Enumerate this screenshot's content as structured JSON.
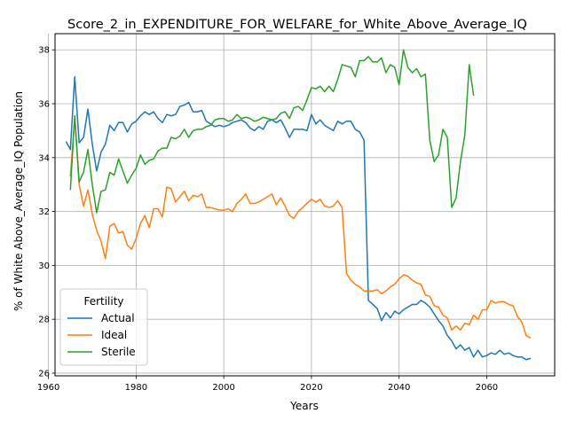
{
  "chart_data": {
    "type": "line",
    "title": "Score_2_in_EXPENDITURE_FOR_WELFARE_for_White_Above_Average_IQ",
    "xlabel": "Years",
    "ylabel": "% of White Above_Average_IQ Population",
    "xlim": [
      1961.5,
      2075.5
    ],
    "ylim": [
      25.9,
      38.6
    ],
    "xticks": [
      1960,
      1980,
      2000,
      2020,
      2040,
      2060
    ],
    "yticks": [
      26,
      28,
      30,
      32,
      34,
      36,
      38
    ],
    "grid": true,
    "legend": {
      "title": "Fertility",
      "position": "lower-left"
    },
    "series": [
      {
        "name": "Actual",
        "color": "#1f77b4",
        "points": [
          [
            1964,
            34.6
          ],
          [
            1965,
            34.3
          ],
          [
            1966,
            37.0
          ],
          [
            1967,
            34.55
          ],
          [
            1968,
            34.75
          ],
          [
            1969,
            35.8
          ],
          [
            1970,
            34.5
          ],
          [
            1971,
            33.5
          ],
          [
            1972,
            34.2
          ],
          [
            1973,
            34.5
          ],
          [
            1974,
            35.2
          ],
          [
            1975,
            35.0
          ],
          [
            1976,
            35.3
          ],
          [
            1977,
            35.3
          ],
          [
            1978,
            34.95
          ],
          [
            1979,
            35.25
          ],
          [
            1980,
            35.35
          ],
          [
            1981,
            35.55
          ],
          [
            1982,
            35.7
          ],
          [
            1983,
            35.6
          ],
          [
            1984,
            35.7
          ],
          [
            1985,
            35.45
          ],
          [
            1986,
            35.3
          ],
          [
            1987,
            35.6
          ],
          [
            1988,
            35.55
          ],
          [
            1989,
            35.6
          ],
          [
            1990,
            35.9
          ],
          [
            1991,
            35.95
          ],
          [
            1992,
            36.05
          ],
          [
            1993,
            35.7
          ],
          [
            1994,
            35.7
          ],
          [
            1995,
            35.75
          ],
          [
            1996,
            35.35
          ],
          [
            1997,
            35.25
          ],
          [
            1998,
            35.15
          ],
          [
            1999,
            35.2
          ],
          [
            2000,
            35.15
          ],
          [
            2001,
            35.2
          ],
          [
            2002,
            35.3
          ],
          [
            2003,
            35.35
          ],
          [
            2004,
            35.4
          ],
          [
            2005,
            35.3
          ],
          [
            2006,
            35.1
          ],
          [
            2007,
            35.0
          ],
          [
            2008,
            35.15
          ],
          [
            2009,
            35.05
          ],
          [
            2010,
            35.35
          ],
          [
            2011,
            35.4
          ],
          [
            2012,
            35.3
          ],
          [
            2013,
            35.4
          ],
          [
            2014,
            35.1
          ],
          [
            2015,
            34.75
          ],
          [
            2016,
            35.05
          ],
          [
            2017,
            35.05
          ],
          [
            2018,
            35.05
          ],
          [
            2019,
            35.0
          ],
          [
            2020,
            35.6
          ],
          [
            2021,
            35.25
          ],
          [
            2022,
            35.4
          ],
          [
            2023,
            35.2
          ],
          [
            2024,
            35.1
          ],
          [
            2025,
            35.0
          ],
          [
            2026,
            35.35
          ],
          [
            2027,
            35.25
          ],
          [
            2028,
            35.35
          ],
          [
            2029,
            35.35
          ],
          [
            2030,
            35.05
          ],
          [
            2031,
            34.95
          ],
          [
            2032,
            34.65
          ],
          [
            2033,
            28.7
          ],
          [
            2034,
            28.55
          ],
          [
            2035,
            28.4
          ],
          [
            2036,
            27.95
          ],
          [
            2037,
            28.25
          ],
          [
            2038,
            28.05
          ],
          [
            2039,
            28.3
          ],
          [
            2040,
            28.2
          ],
          [
            2041,
            28.35
          ],
          [
            2042,
            28.45
          ],
          [
            2043,
            28.55
          ],
          [
            2044,
            28.55
          ],
          [
            2045,
            28.7
          ],
          [
            2046,
            28.6
          ],
          [
            2047,
            28.45
          ],
          [
            2048,
            28.2
          ],
          [
            2049,
            27.95
          ],
          [
            2050,
            27.75
          ],
          [
            2051,
            27.4
          ],
          [
            2052,
            27.2
          ],
          [
            2053,
            26.9
          ],
          [
            2054,
            27.05
          ],
          [
            2055,
            26.85
          ],
          [
            2056,
            26.95
          ],
          [
            2057,
            26.6
          ],
          [
            2058,
            26.85
          ],
          [
            2059,
            26.6
          ],
          [
            2060,
            26.65
          ],
          [
            2061,
            26.75
          ],
          [
            2062,
            26.7
          ],
          [
            2063,
            26.85
          ],
          [
            2064,
            26.7
          ],
          [
            2065,
            26.75
          ],
          [
            2066,
            26.65
          ],
          [
            2067,
            26.6
          ],
          [
            2068,
            26.6
          ],
          [
            2069,
            26.5
          ],
          [
            2070,
            26.55
          ]
        ]
      },
      {
        "name": "Ideal",
        "color": "#ff7f0e",
        "points": [
          [
            1965,
            33.3
          ],
          [
            1966,
            35.5
          ],
          [
            1967,
            33.0
          ],
          [
            1968,
            32.2
          ],
          [
            1969,
            32.8
          ],
          [
            1970,
            31.9
          ],
          [
            1971,
            31.3
          ],
          [
            1972,
            30.9
          ],
          [
            1973,
            30.25
          ],
          [
            1974,
            31.45
          ],
          [
            1975,
            31.55
          ],
          [
            1976,
            31.2
          ],
          [
            1977,
            31.25
          ],
          [
            1978,
            30.75
          ],
          [
            1979,
            30.6
          ],
          [
            1980,
            31.0
          ],
          [
            1981,
            31.55
          ],
          [
            1982,
            31.85
          ],
          [
            1983,
            31.4
          ],
          [
            1984,
            32.1
          ],
          [
            1985,
            32.1
          ],
          [
            1986,
            31.8
          ],
          [
            1987,
            32.9
          ],
          [
            1988,
            32.85
          ],
          [
            1989,
            32.35
          ],
          [
            1990,
            32.55
          ],
          [
            1991,
            32.75
          ],
          [
            1992,
            32.4
          ],
          [
            1993,
            32.6
          ],
          [
            1994,
            32.55
          ],
          [
            1995,
            32.65
          ],
          [
            1996,
            32.15
          ],
          [
            1997,
            32.15
          ],
          [
            1998,
            32.1
          ],
          [
            1999,
            32.05
          ],
          [
            2000,
            32.05
          ],
          [
            2001,
            32.1
          ],
          [
            2002,
            32.0
          ],
          [
            2003,
            32.3
          ],
          [
            2004,
            32.45
          ],
          [
            2005,
            32.65
          ],
          [
            2006,
            32.3
          ],
          [
            2007,
            32.3
          ],
          [
            2008,
            32.35
          ],
          [
            2009,
            32.45
          ],
          [
            2010,
            32.55
          ],
          [
            2011,
            32.65
          ],
          [
            2012,
            32.25
          ],
          [
            2013,
            32.5
          ],
          [
            2014,
            32.2
          ],
          [
            2015,
            31.85
          ],
          [
            2016,
            31.75
          ],
          [
            2017,
            32.0
          ],
          [
            2018,
            32.15
          ],
          [
            2019,
            32.3
          ],
          [
            2020,
            32.45
          ],
          [
            2021,
            32.35
          ],
          [
            2022,
            32.45
          ],
          [
            2023,
            32.2
          ],
          [
            2024,
            32.15
          ],
          [
            2025,
            32.2
          ],
          [
            2026,
            32.4
          ],
          [
            2027,
            32.15
          ],
          [
            2028,
            29.7
          ],
          [
            2029,
            29.45
          ],
          [
            2030,
            29.3
          ],
          [
            2031,
            29.2
          ],
          [
            2032,
            29.05
          ],
          [
            2033,
            29.05
          ],
          [
            2034,
            29.05
          ],
          [
            2035,
            29.1
          ],
          [
            2036,
            28.95
          ],
          [
            2037,
            29.05
          ],
          [
            2038,
            29.2
          ],
          [
            2039,
            29.3
          ],
          [
            2040,
            29.5
          ],
          [
            2041,
            29.65
          ],
          [
            2042,
            29.6
          ],
          [
            2043,
            29.45
          ],
          [
            2044,
            29.35
          ],
          [
            2045,
            29.3
          ],
          [
            2046,
            28.9
          ],
          [
            2047,
            28.85
          ],
          [
            2048,
            28.5
          ],
          [
            2049,
            28.45
          ],
          [
            2050,
            28.15
          ],
          [
            2051,
            28.05
          ],
          [
            2052,
            27.6
          ],
          [
            2053,
            27.75
          ],
          [
            2054,
            27.6
          ],
          [
            2055,
            27.85
          ],
          [
            2056,
            27.8
          ],
          [
            2057,
            28.15
          ],
          [
            2058,
            28.0
          ],
          [
            2059,
            28.35
          ],
          [
            2060,
            28.35
          ],
          [
            2061,
            28.7
          ],
          [
            2062,
            28.6
          ],
          [
            2063,
            28.65
          ],
          [
            2064,
            28.65
          ],
          [
            2065,
            28.55
          ],
          [
            2066,
            28.5
          ],
          [
            2067,
            28.1
          ],
          [
            2068,
            27.9
          ],
          [
            2069,
            27.4
          ],
          [
            2070,
            27.3
          ]
        ]
      },
      {
        "name": "Sterile",
        "color": "#2ca02c",
        "points": [
          [
            1965,
            32.8
          ],
          [
            1966,
            35.55
          ],
          [
            1967,
            33.1
          ],
          [
            1968,
            33.45
          ],
          [
            1969,
            34.3
          ],
          [
            1970,
            33.0
          ],
          [
            1971,
            31.95
          ],
          [
            1972,
            32.75
          ],
          [
            1973,
            32.8
          ],
          [
            1974,
            33.45
          ],
          [
            1975,
            33.35
          ],
          [
            1976,
            33.95
          ],
          [
            1977,
            33.5
          ],
          [
            1978,
            33.05
          ],
          [
            1979,
            33.35
          ],
          [
            1980,
            33.6
          ],
          [
            1981,
            34.1
          ],
          [
            1982,
            33.75
          ],
          [
            1983,
            33.9
          ],
          [
            1984,
            33.95
          ],
          [
            1985,
            34.25
          ],
          [
            1986,
            34.35
          ],
          [
            1987,
            34.35
          ],
          [
            1988,
            34.75
          ],
          [
            1989,
            34.7
          ],
          [
            1990,
            34.8
          ],
          [
            1991,
            35.05
          ],
          [
            1992,
            34.75
          ],
          [
            1993,
            35.0
          ],
          [
            1994,
            35.05
          ],
          [
            1995,
            35.05
          ],
          [
            1996,
            35.15
          ],
          [
            1997,
            35.2
          ],
          [
            1998,
            35.4
          ],
          [
            1999,
            35.45
          ],
          [
            2000,
            35.45
          ],
          [
            2001,
            35.35
          ],
          [
            2002,
            35.4
          ],
          [
            2003,
            35.6
          ],
          [
            2004,
            35.45
          ],
          [
            2005,
            35.5
          ],
          [
            2006,
            35.45
          ],
          [
            2007,
            35.35
          ],
          [
            2008,
            35.4
          ],
          [
            2009,
            35.5
          ],
          [
            2010,
            35.45
          ],
          [
            2011,
            35.4
          ],
          [
            2012,
            35.45
          ],
          [
            2013,
            35.65
          ],
          [
            2014,
            35.7
          ],
          [
            2015,
            35.45
          ],
          [
            2016,
            35.85
          ],
          [
            2017,
            35.9
          ],
          [
            2018,
            35.75
          ],
          [
            2019,
            36.15
          ],
          [
            2020,
            36.6
          ],
          [
            2021,
            36.55
          ],
          [
            2022,
            36.65
          ],
          [
            2023,
            36.45
          ],
          [
            2024,
            36.65
          ],
          [
            2025,
            36.45
          ],
          [
            2026,
            36.9
          ],
          [
            2027,
            37.45
          ],
          [
            2028,
            37.4
          ],
          [
            2029,
            37.35
          ],
          [
            2030,
            37.0
          ],
          [
            2031,
            37.6
          ],
          [
            2032,
            37.6
          ],
          [
            2033,
            37.75
          ],
          [
            2034,
            37.55
          ],
          [
            2035,
            37.55
          ],
          [
            2036,
            37.7
          ],
          [
            2037,
            37.15
          ],
          [
            2038,
            37.45
          ],
          [
            2039,
            37.35
          ],
          [
            2040,
            36.7
          ],
          [
            2041,
            38.0
          ],
          [
            2042,
            37.35
          ],
          [
            2043,
            37.15
          ],
          [
            2044,
            37.3
          ],
          [
            2045,
            37.0
          ],
          [
            2046,
            37.1
          ],
          [
            2047,
            34.65
          ],
          [
            2048,
            33.85
          ],
          [
            2049,
            34.1
          ],
          [
            2050,
            35.05
          ],
          [
            2051,
            34.75
          ],
          [
            2052,
            32.15
          ],
          [
            2053,
            32.5
          ],
          [
            2054,
            33.85
          ],
          [
            2055,
            34.85
          ],
          [
            2056,
            37.45
          ],
          [
            2057,
            36.3
          ]
        ]
      }
    ]
  }
}
